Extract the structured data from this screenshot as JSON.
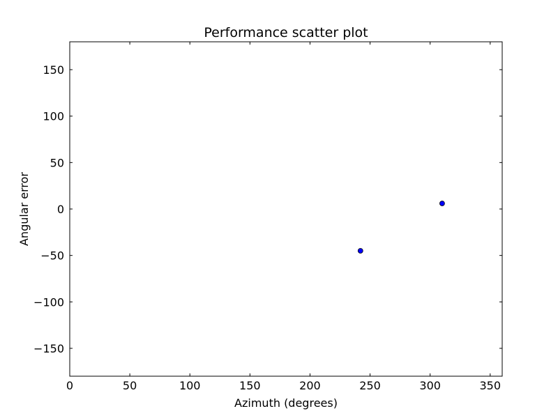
{
  "chart_data": {
    "type": "scatter",
    "title": "Performance scatter plot",
    "xlabel": "Azimuth (degrees)",
    "ylabel": "Angular error",
    "xlim": [
      0,
      360
    ],
    "ylim": [
      -180,
      180
    ],
    "x_ticks": [
      0,
      50,
      100,
      150,
      200,
      250,
      300,
      350
    ],
    "y_ticks": [
      -150,
      -100,
      -50,
      0,
      50,
      100,
      150
    ],
    "grid": false,
    "series": [
      {
        "points": [
          {
            "x": 242,
            "y": -45
          },
          {
            "x": 310,
            "y": 6
          }
        ],
        "marker_color": "#0000ff",
        "marker_edge": "#000000"
      }
    ]
  }
}
